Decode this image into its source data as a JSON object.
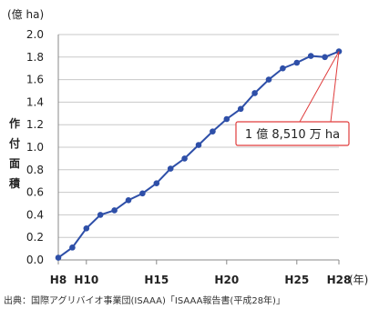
{
  "chart_data": {
    "type": "line",
    "y_unit": "(億 ha)",
    "x_unit": "(年)",
    "ylabel": [
      "作",
      "付",
      "面",
      "積"
    ],
    "ylim": [
      0,
      2.0
    ],
    "y_ticks": [
      "0.0",
      "0.2",
      "0.4",
      "0.6",
      "0.8",
      "1.0",
      "1.2",
      "1.4",
      "1.6",
      "1.8",
      "2.0"
    ],
    "x_tick_labels": [
      {
        "x": 8,
        "label": "H8"
      },
      {
        "x": 10,
        "label": "H10"
      },
      {
        "x": 15,
        "label": "H15"
      },
      {
        "x": 20,
        "label": "H20"
      },
      {
        "x": 25,
        "label": "H25"
      },
      {
        "x": 28,
        "label": "H28"
      }
    ],
    "xlim": [
      8,
      28
    ],
    "grid": "horizontal",
    "series": [
      {
        "color": "#2e4fa8",
        "x": [
          8,
          9,
          10,
          11,
          12,
          13,
          14,
          15,
          16,
          17,
          18,
          19,
          20,
          21,
          22,
          23,
          24,
          25,
          26,
          27,
          28
        ],
        "y": [
          0.02,
          0.11,
          0.28,
          0.4,
          0.44,
          0.53,
          0.59,
          0.68,
          0.81,
          0.9,
          1.02,
          1.14,
          1.25,
          1.34,
          1.48,
          1.6,
          1.7,
          1.75,
          1.81,
          1.8,
          1.85
        ]
      }
    ],
    "annotation": {
      "text": "1 億 8,510 万 ha",
      "x": 28,
      "y": 1.85
    }
  },
  "source_note": "出典：国際アグリバイオ事業団(ISAAA)「ISAAA報告書(平成28年)」"
}
